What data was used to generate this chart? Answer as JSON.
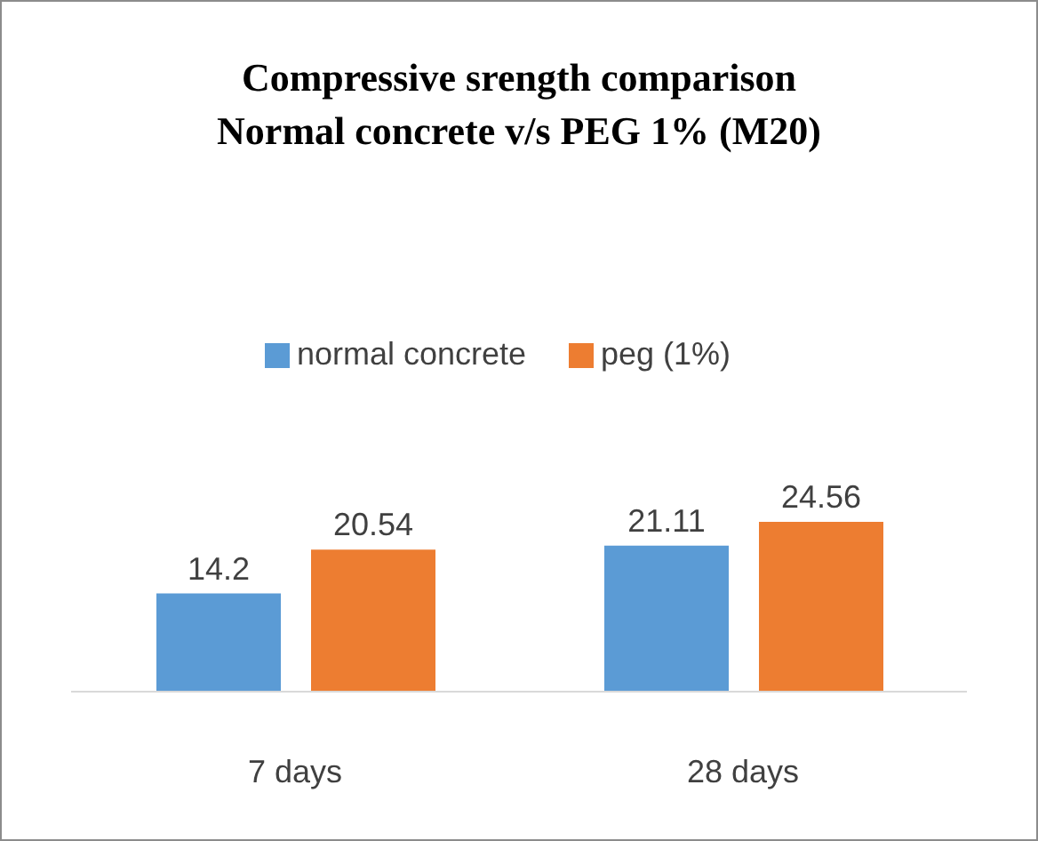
{
  "chart_data": {
    "type": "bar",
    "title": "Compressive srength comparison Normal concrete v/s PEG 1% (M20)",
    "categories": [
      "7 days",
      "28 days"
    ],
    "series": [
      {
        "name": "normal concrete",
        "color": "#5b9bd5",
        "values": [
          14.2,
          21.11
        ]
      },
      {
        "name": "peg (1%)",
        "color": "#ed7d31",
        "values": [
          20.54,
          24.56
        ]
      }
    ],
    "data_labels": true,
    "legend": "top",
    "grid": false
  }
}
